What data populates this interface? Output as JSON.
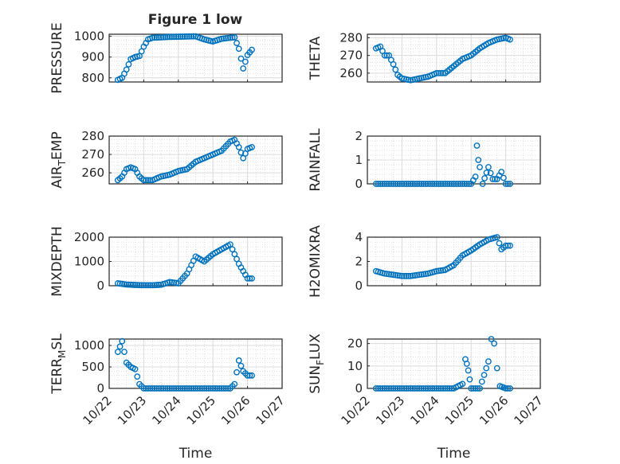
{
  "figure": {
    "title": "Figure 1 low",
    "marker_color": "#0072BD"
  },
  "chart_data": [
    {
      "id": "pressure",
      "type": "scatter",
      "ylabel": "PRESSURE",
      "xlim": [
        "10/22",
        "10/27"
      ],
      "ylim": [
        780,
        1010
      ],
      "yticks": [
        800,
        900,
        1000
      ],
      "xticklabels": [],
      "x": [
        "10/22 06:00",
        "10/22 09:00",
        "10/22 12:00",
        "10/22 15:00",
        "10/22 18:00",
        "10/22 21:00",
        "10/23 00:00",
        "10/23 03:00",
        "10/23 06:00",
        "10/23 12:00",
        "10/23 18:00",
        "10/24 00:00",
        "10/24 06:00",
        "10/24 12:00",
        "10/24 18:00",
        "10/25 00:00",
        "10/25 06:00",
        "10/25 12:00",
        "10/25 15:00",
        "10/25 18:00",
        "10/25 21:00",
        "10/26 00:00",
        "10/26 03:00"
      ],
      "y": [
        790,
        800,
        840,
        890,
        900,
        905,
        950,
        985,
        993,
        995,
        997,
        998,
        999,
        1000,
        985,
        975,
        988,
        993,
        995,
        940,
        845,
        910,
        935
      ]
    },
    {
      "id": "theta",
      "type": "scatter",
      "ylabel": "THETA",
      "xlim": [
        "10/22",
        "10/27"
      ],
      "ylim": [
        255,
        282
      ],
      "yticks": [
        260,
        270,
        280
      ],
      "xticklabels": [],
      "x": [
        "10/22 06:00",
        "10/22 09:00",
        "10/22 12:00",
        "10/22 15:00",
        "10/22 18:00",
        "10/22 21:00",
        "10/23 00:00",
        "10/23 06:00",
        "10/23 12:00",
        "10/23 18:00",
        "10/24 00:00",
        "10/24 06:00",
        "10/24 12:00",
        "10/24 18:00",
        "10/25 00:00",
        "10/25 06:00",
        "10/25 12:00",
        "10/25 18:00",
        "10/26 00:00",
        "10/26 03:00"
      ],
      "y": [
        274,
        275,
        270,
        270,
        265,
        259,
        257,
        256,
        257,
        258,
        260,
        260,
        264,
        268,
        270,
        274,
        277,
        279,
        280,
        279
      ]
    },
    {
      "id": "airtemp",
      "type": "scatter",
      "ylabel": "AIR_TEMP",
      "xlim": [
        "10/22",
        "10/27"
      ],
      "ylim": [
        254,
        280
      ],
      "yticks": [
        260,
        270,
        280
      ],
      "xticklabels": [],
      "x": [
        "10/22 06:00",
        "10/22 09:00",
        "10/22 12:00",
        "10/22 15:00",
        "10/22 18:00",
        "10/22 21:00",
        "10/23 00:00",
        "10/23 06:00",
        "10/23 12:00",
        "10/23 18:00",
        "10/24 00:00",
        "10/24 06:00",
        "10/24 12:00",
        "10/24 18:00",
        "10/25 00:00",
        "10/25 06:00",
        "10/25 12:00",
        "10/25 15:00",
        "10/25 18:00",
        "10/25 21:00",
        "10/26 00:00",
        "10/26 03:00"
      ],
      "y": [
        256,
        258,
        262,
        263,
        262,
        258,
        256,
        256,
        258,
        259,
        261,
        262,
        266,
        268,
        270,
        272,
        277,
        278,
        274,
        268,
        273,
        274
      ]
    },
    {
      "id": "rainfall",
      "type": "scatter",
      "ylabel": "RAINFALL",
      "xlim": [
        "10/22",
        "10/27"
      ],
      "ylim": [
        0,
        2
      ],
      "yticks": [
        0,
        1,
        2
      ],
      "xticklabels": [],
      "x": [
        "10/22 06:00",
        "10/22 12:00",
        "10/22 18:00",
        "10/23 00:00",
        "10/23 06:00",
        "10/23 12:00",
        "10/23 18:00",
        "10/24 00:00",
        "10/24 06:00",
        "10/24 12:00",
        "10/24 18:00",
        "10/25 00:00",
        "10/25 03:00",
        "10/25 04:00",
        "10/25 05:00",
        "10/25 06:00",
        "10/25 08:00",
        "10/25 12:00",
        "10/25 15:00",
        "10/25 18:00",
        "10/25 21:00",
        "10/26 00:00",
        "10/26 03:00"
      ],
      "y": [
        0,
        0,
        0,
        0,
        0,
        0,
        0,
        0,
        0,
        0,
        0,
        0,
        0.3,
        1.6,
        1.0,
        0.7,
        0,
        0.7,
        0.2,
        0.2,
        0.5,
        0,
        0
      ]
    },
    {
      "id": "mixdepth",
      "type": "scatter",
      "ylabel": "MIXDEPTH",
      "xlim": [
        "10/22",
        "10/27"
      ],
      "ylim": [
        0,
        2000
      ],
      "yticks": [
        0,
        1000,
        2000
      ],
      "xticklabels": [],
      "x": [
        "10/22 06:00",
        "10/22 12:00",
        "10/22 18:00",
        "10/23 00:00",
        "10/23 06:00",
        "10/23 12:00",
        "10/23 18:00",
        "10/24 00:00",
        "10/24 06:00",
        "10/24 12:00",
        "10/24 18:00",
        "10/25 00:00",
        "10/25 06:00",
        "10/25 12:00",
        "10/25 15:00",
        "10/25 18:00",
        "10/25 21:00",
        "10/26 00:00",
        "10/26 03:00"
      ],
      "y": [
        100,
        50,
        30,
        20,
        20,
        40,
        150,
        100,
        500,
        1200,
        1000,
        1300,
        1500,
        1700,
        1300,
        900,
        600,
        300,
        300
      ]
    },
    {
      "id": "h2omixra",
      "type": "scatter",
      "ylabel": "H2OMIXRA",
      "xlim": [
        "10/22",
        "10/27"
      ],
      "ylim": [
        0,
        4
      ],
      "yticks": [
        0,
        2,
        4
      ],
      "xticklabels": [],
      "x": [
        "10/22 06:00",
        "10/22 12:00",
        "10/22 18:00",
        "10/23 00:00",
        "10/23 06:00",
        "10/23 12:00",
        "10/23 18:00",
        "10/24 00:00",
        "10/24 06:00",
        "10/24 12:00",
        "10/24 18:00",
        "10/25 00:00",
        "10/25 06:00",
        "10/25 12:00",
        "10/25 18:00",
        "10/25 21:00",
        "10/26 00:00",
        "10/26 03:00"
      ],
      "y": [
        1.2,
        1.0,
        0.9,
        0.8,
        0.8,
        0.9,
        1.0,
        1.2,
        1.3,
        1.7,
        2.5,
        2.9,
        3.4,
        3.8,
        4.0,
        3.0,
        3.3,
        3.3
      ]
    },
    {
      "id": "terrmsl",
      "type": "scatter",
      "ylabel": "TERR_MSL",
      "xlim": [
        "10/22",
        "10/27"
      ],
      "ylim": [
        0,
        1150
      ],
      "yticks": [
        0,
        500,
        1000
      ],
      "xticklabels": [
        "10/22",
        "10/23",
        "10/24",
        "10/25",
        "10/26",
        "10/27"
      ],
      "xlabel": "Time",
      "x": [
        "10/22 06:00",
        "10/22 09:00",
        "10/22 12:00",
        "10/22 15:00",
        "10/22 18:00",
        "10/22 21:00",
        "10/23 00:00",
        "10/23 06:00",
        "10/23 12:00",
        "10/23 18:00",
        "10/24 00:00",
        "10/24 06:00",
        "10/24 12:00",
        "10/24 18:00",
        "10/25 00:00",
        "10/25 06:00",
        "10/25 12:00",
        "10/25 15:00",
        "10/25 18:00",
        "10/25 21:00",
        "10/26 00:00",
        "10/26 03:00"
      ],
      "y": [
        850,
        1100,
        600,
        500,
        450,
        100,
        0,
        0,
        0,
        0,
        0,
        0,
        0,
        0,
        0,
        0,
        0,
        100,
        650,
        400,
        300,
        300
      ]
    },
    {
      "id": "sunflux",
      "type": "scatter",
      "ylabel": "SUN_FLUX",
      "xlim": [
        "10/22",
        "10/27"
      ],
      "ylim": [
        0,
        22
      ],
      "yticks": [
        0,
        10,
        20
      ],
      "xticklabels": [
        "10/22",
        "10/23",
        "10/24",
        "10/25",
        "10/26",
        "10/27"
      ],
      "xlabel": "Time",
      "x": [
        "10/22 06:00",
        "10/22 12:00",
        "10/22 18:00",
        "10/23 00:00",
        "10/23 06:00",
        "10/23 12:00",
        "10/23 18:00",
        "10/24 00:00",
        "10/24 06:00",
        "10/24 12:00",
        "10/24 18:00",
        "10/24 20:00",
        "10/24 21:00",
        "10/24 22:00",
        "10/24 23:00",
        "10/25 00:00",
        "10/25 06:00",
        "10/25 12:00",
        "10/25 14:00",
        "10/25 16:00",
        "10/25 18:00",
        "10/25 20:00",
        "10/26 00:00",
        "10/26 03:00"
      ],
      "y": [
        0,
        0,
        0,
        0,
        0,
        0,
        0,
        0,
        0,
        0,
        2,
        13,
        11,
        8,
        4,
        0,
        0,
        12,
        22,
        20,
        9,
        1,
        0,
        0
      ]
    }
  ]
}
